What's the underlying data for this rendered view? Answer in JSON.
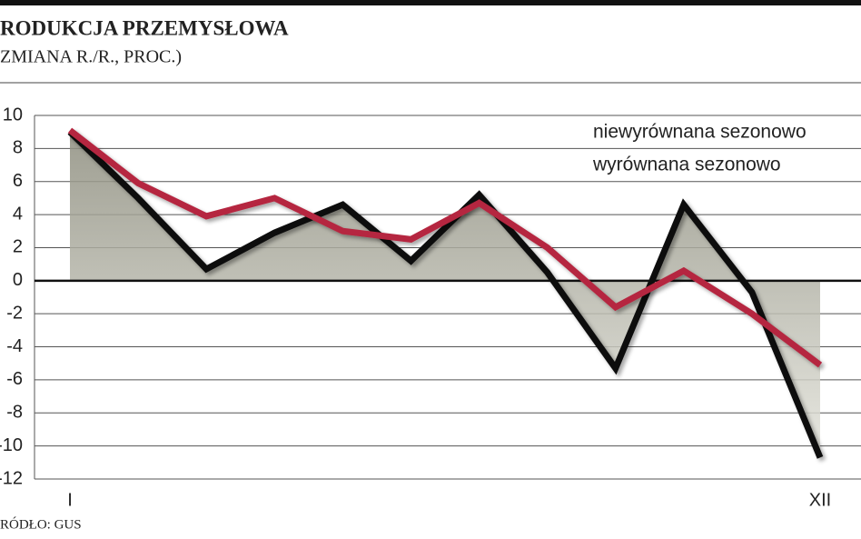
{
  "chart_data": {
    "type": "line",
    "title": "RODUKCJA PRZEMYSŁOWA",
    "subtitle": "ZMIANA R./R., PROC.)",
    "source": "RÓDŁO: GUS",
    "categories": [
      "I",
      null,
      null,
      null,
      null,
      null,
      null,
      null,
      null,
      null,
      null,
      "XII"
    ],
    "series": [
      {
        "name": "niewyrównana sezonowo",
        "color": "#111111",
        "values": [
          9.0,
          5.0,
          0.7,
          2.9,
          4.6,
          1.2,
          5.2,
          0.5,
          -5.3,
          4.6,
          -0.7,
          -10.7
        ]
      },
      {
        "name": "wyrównana sezonowo",
        "color": "#b5263f",
        "values": [
          9.1,
          5.9,
          3.9,
          5.0,
          3.0,
          2.5,
          4.7,
          2.0,
          -1.6,
          0.6,
          -2.0,
          -5.1
        ]
      }
    ],
    "ylim": [
      -12,
      10
    ],
    "yticks": [
      -12,
      -10,
      -8,
      -6,
      -4,
      -2,
      0,
      2,
      4,
      6,
      8,
      10
    ],
    "grid": true,
    "legend": "top-right"
  }
}
